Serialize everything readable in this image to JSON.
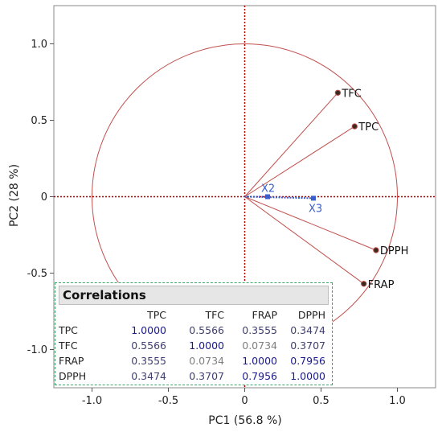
{
  "chart_data": {
    "type": "scatter",
    "subtype": "pca-correlation-circle",
    "title": "",
    "xlabel": "PC1 (56.8 %)",
    "ylabel": "PC2 (28 %)",
    "xlim": [
      -1.25,
      1.25
    ],
    "ylim": [
      -1.25,
      1.25
    ],
    "x_ticks": [
      -1.0,
      -0.5,
      0,
      0.5,
      1.0
    ],
    "x_tick_labels": [
      "-1.0",
      "-0.5",
      "0",
      "0.5",
      "1.0"
    ],
    "y_ticks": [
      1.0,
      0.5,
      0,
      -0.5,
      -1.0
    ],
    "y_tick_labels": [
      "1.0",
      "0.5",
      "0",
      "-0.5",
      "-1.0"
    ],
    "grid": false,
    "unit_circle": true,
    "variables": [
      {
        "name": "TFC",
        "x": 0.61,
        "y": 0.68
      },
      {
        "name": "TPC",
        "x": 0.72,
        "y": 0.46
      },
      {
        "name": "DPPH",
        "x": 0.86,
        "y": -0.35
      },
      {
        "name": "FRAP",
        "x": 0.78,
        "y": -0.57
      }
    ],
    "supplementary": [
      {
        "name": "X2",
        "x": 0.15,
        "y": 0.0
      },
      {
        "name": "X3",
        "x": 0.45,
        "y": -0.01
      }
    ],
    "colors": {
      "vectors": "#c0504d",
      "reference_lines": "#b00000",
      "supplementary": "#3a5fcd",
      "panel_border": "#3aa66a"
    }
  },
  "correlations": {
    "title": "Correlations",
    "columns": [
      "TPC",
      "TFC",
      "FRAP",
      "DPPH"
    ],
    "rows": [
      {
        "name": "TPC",
        "values": [
          "1.0000",
          "0.5566",
          "0.3555",
          "0.3474"
        ]
      },
      {
        "name": "TFC",
        "values": [
          "0.5566",
          "1.0000",
          "0.0734",
          "0.3707"
        ]
      },
      {
        "name": "FRAP",
        "values": [
          "0.3555",
          "0.0734",
          "1.0000",
          "0.7956"
        ]
      },
      {
        "name": "DPPH",
        "values": [
          "0.3474",
          "0.3707",
          "0.7956",
          "1.0000"
        ]
      }
    ]
  }
}
